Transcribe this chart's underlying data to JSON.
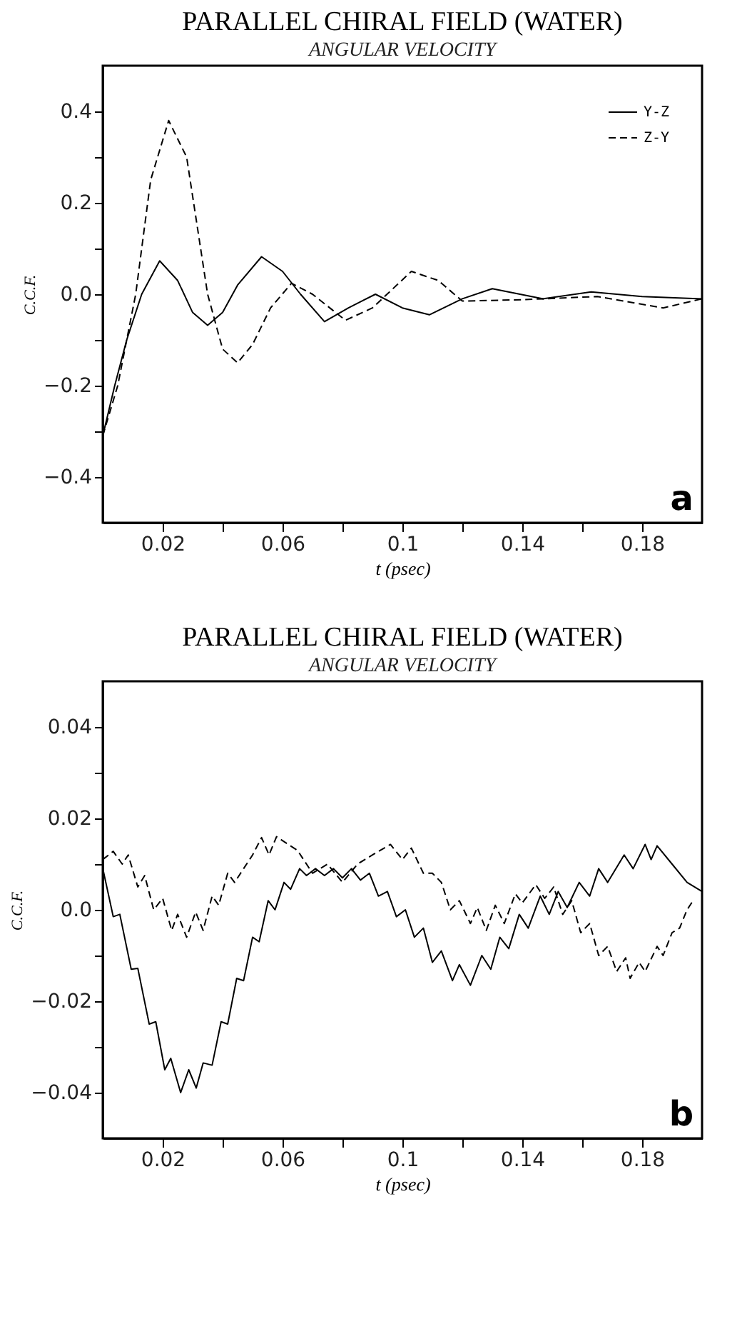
{
  "chart_data": [
    {
      "type": "line",
      "title": "PARALLEL CHIRAL FIELD (WATER)",
      "subtitle": "ANGULAR VELOCITY",
      "xlabel": "t (psec)",
      "ylabel": "C.C.F.",
      "annotations": [
        "a"
      ],
      "xlim": [
        0,
        0.2
      ],
      "ylim": [
        -0.5,
        0.5
      ],
      "xticks": [
        0.02,
        {
          "value": 0.04,
          "label": null
        },
        0.06,
        {
          "value": 0.08,
          "label": null
        },
        0.1,
        {
          "value": 0.12,
          "label": null
        },
        0.14,
        {
          "value": 0.16,
          "label": null
        },
        0.18
      ],
      "yticks": [
        -0.4,
        {
          "value": -0.3,
          "label": null
        },
        -0.2,
        {
          "value": -0.1,
          "label": null
        },
        {
          "value": 0,
          "label": "0.0"
        },
        {
          "value": 0.1,
          "label": null
        },
        0.2,
        {
          "value": 0.3,
          "label": null
        },
        0.4
      ],
      "grid": false,
      "legend": "top right",
      "marker": "none",
      "series": [
        {
          "name": "Y-Z",
          "color": "#000000",
          "line_style": "solid",
          "x": [
            0,
            0.004,
            0.008,
            0.013,
            0.019,
            0.025,
            0.03,
            0.035,
            0.04,
            0.045,
            0.053,
            0.06,
            0.066,
            0.074,
            0.082,
            0.091,
            0.1,
            0.109,
            0.12,
            0.13,
            0.147,
            0.163,
            0.18,
            0.2
          ],
          "values": [
            -0.31,
            -0.2,
            -0.1,
            0,
            0.073,
            0.03,
            -0.04,
            -0.068,
            -0.04,
            0.02,
            0.082,
            0.05,
            0,
            -0.06,
            -0.03,
            0,
            -0.03,
            -0.045,
            -0.01,
            0.012,
            -0.01,
            0.005,
            -0.005,
            -0.01
          ]
        },
        {
          "name": "Z-Y",
          "color": "#000000",
          "line_style": "dashed",
          "x": [
            0,
            0.005,
            0.011,
            0.016,
            0.022,
            0.028,
            0.035,
            0.04,
            0.045,
            0.05,
            0.056,
            0.063,
            0.07,
            0.081,
            0.09,
            0.103,
            0.112,
            0.12,
            0.14,
            0.165,
            0.187,
            0.2
          ],
          "values": [
            -0.31,
            -0.2,
            0,
            0.25,
            0.38,
            0.3,
            0,
            -0.12,
            -0.15,
            -0.11,
            -0.03,
            0.024,
            0,
            -0.057,
            -0.03,
            0.05,
            0.03,
            -0.015,
            -0.012,
            -0.005,
            -0.03,
            -0.01
          ]
        }
      ]
    },
    {
      "type": "line",
      "title": "PARALLEL CHIRAL FIELD (WATER)",
      "subtitle": "ANGULAR VELOCITY",
      "xlabel": "t (psec)",
      "ylabel": "C.C.F.",
      "annotations": [
        "b"
      ],
      "xlim": [
        0,
        0.2
      ],
      "ylim": [
        -0.05,
        0.05
      ],
      "xticks": [
        0.02,
        {
          "value": 0.04,
          "label": null
        },
        0.06,
        {
          "value": 0.08,
          "label": null
        },
        0.1,
        {
          "value": 0.12,
          "label": null
        },
        0.14,
        {
          "value": 0.16,
          "label": null
        },
        0.18
      ],
      "yticks": [
        -0.04,
        {
          "value": -0.03,
          "label": null
        },
        -0.02,
        {
          "value": -0.01,
          "label": null
        },
        {
          "value": 0,
          "label": "0.0"
        },
        {
          "value": 0.01,
          "label": null
        },
        0.02,
        {
          "value": 0.03,
          "label": null
        },
        0.04
      ],
      "grid": false,
      "legend": "top right",
      "marker": "none",
      "series": [
        {
          "name": "Y-Z",
          "color": "#000000",
          "line_style": "solid",
          "x": [
            0.0002,
            0.0035,
            0.0057,
            0.0095,
            0.0117,
            0.0155,
            0.0177,
            0.0207,
            0.0227,
            0.026,
            0.0287,
            0.0312,
            0.0335,
            0.0365,
            0.0395,
            0.0417,
            0.0447,
            0.047,
            0.05,
            0.0522,
            0.0552,
            0.0575,
            0.0605,
            0.0627,
            0.0657,
            0.068,
            0.071,
            0.074,
            0.077,
            0.08,
            0.083,
            0.086,
            0.089,
            0.092,
            0.095,
            0.098,
            0.101,
            0.104,
            0.107,
            0.11,
            0.113,
            0.1167,
            0.119,
            0.1227,
            0.1265,
            0.1295,
            0.1325,
            0.1355,
            0.139,
            0.142,
            0.146,
            0.149,
            0.152,
            0.155,
            0.159,
            0.1625,
            0.1655,
            0.1685,
            0.174,
            0.177,
            0.181,
            0.183,
            0.185,
            0.19,
            0.195,
            0.2
          ],
          "values": [
            0.0085,
            -0.0015,
            -0.001,
            -0.013,
            -0.0128,
            -0.025,
            -0.0245,
            -0.035,
            -0.0325,
            -0.04,
            -0.035,
            -0.039,
            -0.0335,
            -0.034,
            -0.0245,
            -0.025,
            -0.015,
            -0.0155,
            -0.006,
            -0.007,
            0.002,
            0,
            0.006,
            0.0045,
            0.009,
            0.0075,
            0.009,
            0.0075,
            0.009,
            0.007,
            0.009,
            0.0065,
            0.008,
            0.003,
            0.004,
            -0.0015,
            0,
            -0.006,
            -0.004,
            -0.0115,
            -0.009,
            -0.0155,
            -0.012,
            -0.0165,
            -0.01,
            -0.013,
            -0.006,
            -0.0085,
            -0.001,
            -0.004,
            0.003,
            -0.001,
            0.004,
            0.0005,
            0.006,
            0.003,
            0.009,
            0.006,
            0.012,
            0.009,
            0.0143,
            0.011,
            0.014,
            0.01,
            0.006,
            0.004
          ]
        },
        {
          "name": "Z-Y",
          "color": "#000000",
          "line_style": "dashed",
          "x": [
            0,
            0.0035,
            0.0065,
            0.0085,
            0.0117,
            0.014,
            0.017,
            0.02,
            0.023,
            0.025,
            0.028,
            0.031,
            0.0335,
            0.0365,
            0.0387,
            0.0417,
            0.044,
            0.047,
            0.05,
            0.053,
            0.0555,
            0.058,
            0.065,
            0.07,
            0.075,
            0.08,
            0.085,
            0.09,
            0.096,
            0.1,
            0.103,
            0.107,
            0.11,
            0.113,
            0.116,
            0.119,
            0.1227,
            0.125,
            0.128,
            0.131,
            0.134,
            0.1377,
            0.14,
            0.1445,
            0.1475,
            0.1505,
            0.1535,
            0.1565,
            0.1595,
            0.1625,
            0.1655,
            0.1685,
            0.1715,
            0.1745,
            0.176,
            0.179,
            0.181,
            0.185,
            0.187,
            0.19,
            0.1925,
            0.195,
            0.197
          ],
          "values": [
            0.011,
            0.0128,
            0.01,
            0.012,
            0.005,
            0.0075,
            0,
            0.0025,
            -0.0045,
            -0.001,
            -0.006,
            -0.0005,
            -0.0045,
            0.003,
            0.001,
            0.008,
            0.006,
            0.009,
            0.012,
            0.0158,
            0.012,
            0.016,
            0.013,
            0.008,
            0.01,
            0.006,
            0.01,
            0.012,
            0.0143,
            0.011,
            0.0135,
            0.008,
            0.008,
            0.006,
            0,
            0.002,
            -0.003,
            0.0005,
            -0.0045,
            0.001,
            -0.003,
            0.0035,
            0.0015,
            0.0055,
            0.0025,
            0.005,
            -0.001,
            0.002,
            -0.005,
            -0.003,
            -0.01,
            -0.008,
            -0.0135,
            -0.0105,
            -0.015,
            -0.0115,
            -0.0135,
            -0.008,
            -0.01,
            -0.005,
            -0.004,
            0,
            0.002
          ]
        }
      ]
    }
  ]
}
